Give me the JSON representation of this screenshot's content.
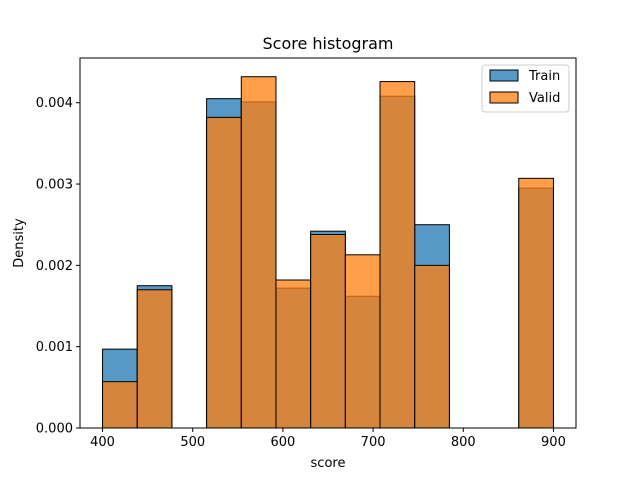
{
  "chart_data": {
    "type": "bar",
    "title": "Score histogram",
    "xlabel": "score",
    "ylabel": "Density",
    "xlim": [
      375,
      925
    ],
    "ylim": [
      0,
      0.00455
    ],
    "xticks": [
      400,
      500,
      600,
      700,
      800,
      900
    ],
    "xtick_labels": [
      "400",
      "500",
      "600",
      "700",
      "800",
      "900"
    ],
    "yticks": [
      0,
      0.001,
      0.002,
      0.003,
      0.004
    ],
    "ytick_labels": [
      "0.000",
      "0.001",
      "0.002",
      "0.003",
      "0.004"
    ],
    "bin_edges": [
      400,
      438.46,
      476.92,
      515.38,
      553.85,
      592.31,
      630.77,
      669.23,
      707.69,
      746.15,
      784.62,
      823.08,
      861.54,
      900
    ],
    "series": [
      {
        "name": "Train",
        "color": "#1f77b4",
        "values": [
          0.00097,
          0.00175,
          0,
          0.00405,
          0.00401,
          0.00172,
          0.00242,
          0.00162,
          0.00408,
          0.0025,
          0,
          0,
          0.00295
        ]
      },
      {
        "name": "Valid",
        "color": "#ff7f0e",
        "values": [
          0.00057,
          0.0017,
          0,
          0.00382,
          0.00432,
          0.00182,
          0.00238,
          0.00213,
          0.00426,
          0.002,
          0,
          0,
          0.00307
        ]
      }
    ],
    "legend": {
      "position": "top-right"
    },
    "grid": false
  }
}
